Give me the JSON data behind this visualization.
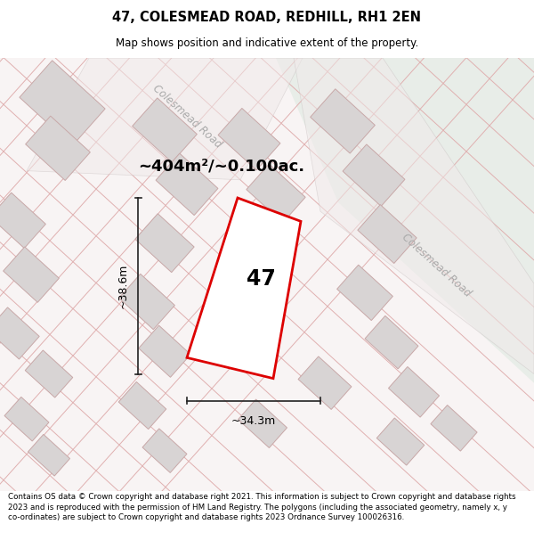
{
  "title": "47, COLESMEAD ROAD, REDHILL, RH1 2EN",
  "subtitle": "Map shows position and indicative extent of the property.",
  "footer": "Contains OS data © Crown copyright and database right 2021. This information is subject to Crown copyright and database rights 2023 and is reproduced with the permission of HM Land Registry. The polygons (including the associated geometry, namely x, y co-ordinates) are subject to Crown copyright and database rights 2023 Ordnance Survey 100026316.",
  "map_bg": "#f8f4f4",
  "green_color": "#e8ede8",
  "bld_fill": "#d8d4d4",
  "bld_edge": "#c8a8a8",
  "plot_red": "#dd0000",
  "dim_color": "#222222",
  "line_color": "#e0b0b0",
  "road_gray": "#c8c0c0",
  "area_text": "~404m²/~0.100ac.",
  "dim_w": "~34.3m",
  "dim_h": "~38.6m",
  "num": "47",
  "road1": "Colesmead Road",
  "road2": "Colesmead Road"
}
